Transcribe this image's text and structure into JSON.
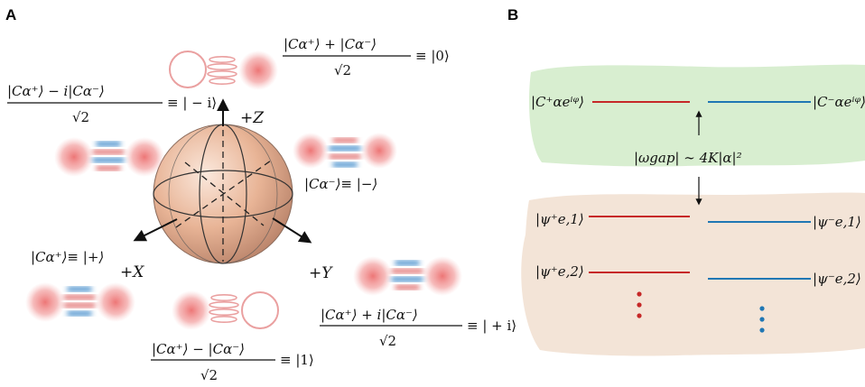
{
  "panels": {
    "a": "A",
    "b": "B"
  },
  "sphere": {
    "axes": {
      "z": "+Z",
      "x": "+X",
      "y": "+Y"
    },
    "top": {
      "num": "|Cα⁺⟩ + |Cα⁻⟩",
      "den": "√2",
      "eq": "≡ |0⟩"
    },
    "upper_left": {
      "num": "|Cα⁺⟩ − i|Cα⁻⟩",
      "den": "√2",
      "eq": "≡ | − i⟩"
    },
    "minus": "|Cα⁻⟩≡ |−⟩",
    "plus": "|Cα⁺⟩≡ |+⟩",
    "bottom": {
      "num": "|Cα⁺⟩ − |Cα⁻⟩",
      "den": "√2",
      "eq": "≡ |1⟩"
    },
    "lower_right": {
      "num": "|Cα⁺⟩ + i|Cα⁻⟩",
      "den": "√2",
      "eq": "≡ | + i⟩"
    }
  },
  "levels": {
    "top_left": "|C⁺αeⁱᵠ⟩",
    "top_right": "|C⁻αeⁱᵠ⟩",
    "gap": "|ωgap| ∼ 4K|α|²",
    "e1_left": "|ψ⁺e,1⟩",
    "e1_right": "|ψ⁻e,1⟩",
    "e2_left": "|ψ⁺e,2⟩",
    "e2_right": "|ψ⁻e,2⟩"
  },
  "colors": {
    "red": "#c62828",
    "blue": "#1f77b4",
    "green_band": "#d9efd2",
    "tan_band": "#f2e3d6",
    "sphere": "#e7b496",
    "blob": "#ec7c7c"
  }
}
